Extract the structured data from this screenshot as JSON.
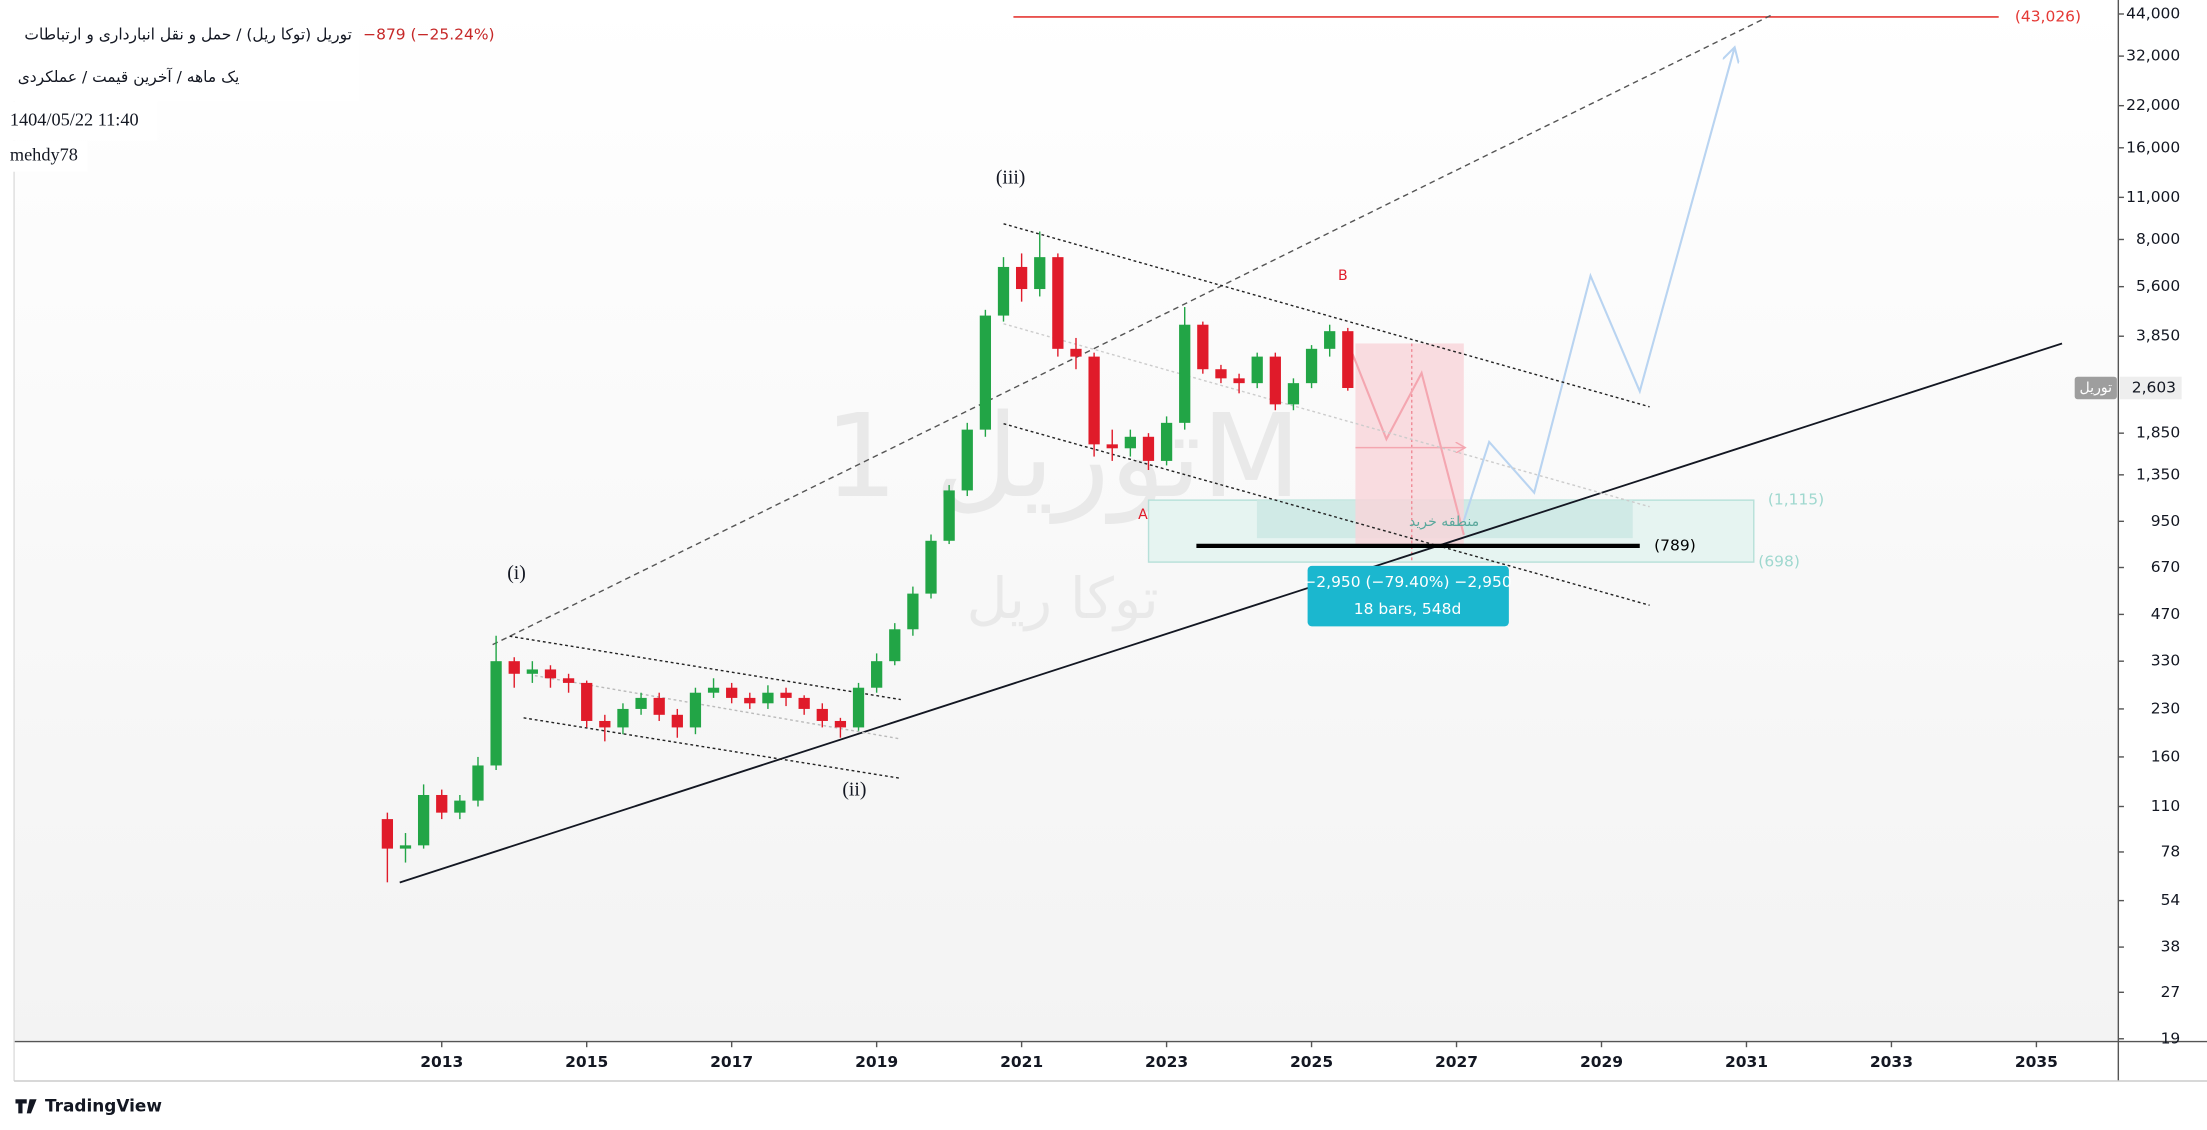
{
  "chart_data": {
    "type": "candlestick",
    "title": "توریل (توکا ریل) / حمل و نقل انبارداری و ارتباطات",
    "subtitle": "یک ماهه / آخرین قیمت / عملکردی",
    "change": "−879 (−25.24%)",
    "datetime": "1404/05/22 11:40",
    "author": "mehdy78",
    "watermark": "توریل 1M",
    "watermark_sub": "توکا ریل",
    "symbol": "توریل",
    "branding": "TradingView",
    "wave_labels": [
      "(i)",
      "(ii)",
      "(iii)",
      "A",
      "B"
    ],
    "zone_label": "منطقه خرید",
    "measure": [
      "−2,950 (−79.40%) −2,950",
      "18 bars, 548d"
    ],
    "log_scale": true,
    "up_color": "#22a546",
    "down_color": "#e01b2a",
    "x": [
      2012.25,
      2012.5,
      2012.75,
      2013.0,
      2013.25,
      2013.5,
      2013.75,
      2014.0,
      2014.25,
      2014.5,
      2014.75,
      2015.0,
      2015.25,
      2015.5,
      2015.75,
      2016.0,
      2016.25,
      2016.5,
      2016.75,
      2017.0,
      2017.25,
      2017.5,
      2017.75,
      2018.0,
      2018.25,
      2018.5,
      2018.75,
      2019.0,
      2019.25,
      2019.5,
      2019.75,
      2020.0,
      2020.25,
      2020.5,
      2020.75,
      2021.0,
      2021.25,
      2021.5,
      2021.75,
      2022.0,
      2022.25,
      2022.5,
      2022.75,
      2023.0,
      2023.25,
      2023.5,
      2023.75,
      2024.0,
      2024.25,
      2024.5,
      2024.75,
      2025.0,
      2025.25,
      2025.5
    ],
    "open": [
      100,
      80,
      82,
      120,
      105,
      115,
      150,
      330,
      300,
      310,
      290,
      280,
      210,
      200,
      230,
      250,
      220,
      200,
      260,
      270,
      250,
      240,
      260,
      250,
      230,
      210,
      200,
      270,
      330,
      420,
      550,
      820,
      1200,
      1900,
      4500,
      6500,
      5500,
      7000,
      3500,
      3300,
      1700,
      1650,
      1800,
      1500,
      2000,
      4200,
      3000,
      2800,
      2700,
      3300,
      2300,
      2700,
      3500,
      4000
    ],
    "high": [
      105,
      90,
      130,
      125,
      120,
      160,
      400,
      340,
      330,
      320,
      300,
      285,
      220,
      240,
      260,
      260,
      230,
      270,
      290,
      280,
      260,
      275,
      270,
      255,
      240,
      215,
      280,
      350,
      440,
      580,
      860,
      1250,
      2000,
      4700,
      7000,
      7200,
      8500,
      7200,
      3800,
      3400,
      1900,
      1900,
      1850,
      2100,
      4800,
      4300,
      3100,
      2900,
      3400,
      3400,
      2800,
      3600,
      4200,
      4100
    ],
    "low": [
      62,
      72,
      80,
      100,
      100,
      110,
      145,
      270,
      280,
      270,
      260,
      200,
      180,
      190,
      220,
      210,
      185,
      190,
      250,
      240,
      230,
      230,
      235,
      220,
      200,
      185,
      195,
      260,
      320,
      400,
      530,
      800,
      1150,
      1800,
      4300,
      5000,
      5200,
      3300,
      3000,
      1550,
      1500,
      1550,
      1400,
      1450,
      1900,
      2900,
      2700,
      2500,
      2600,
      2200,
      2200,
      2600,
      3300,
      2550
    ],
    "close": [
      80,
      82,
      120,
      105,
      115,
      150,
      330,
      300,
      310,
      290,
      280,
      210,
      200,
      230,
      250,
      220,
      200,
      260,
      270,
      250,
      240,
      260,
      250,
      230,
      210,
      200,
      270,
      330,
      420,
      550,
      820,
      1200,
      1900,
      4500,
      6500,
      5500,
      7000,
      3500,
      3300,
      1700,
      1650,
      1800,
      1500,
      2000,
      4200,
      3000,
      2800,
      2700,
      3300,
      2300,
      2700,
      3500,
      4000,
      2603
    ],
    "last_price": {
      "value": 2603,
      "label": "2,603"
    },
    "levels": [
      {
        "value": 43026,
        "label": "(43,026)",
        "color": "#e53935"
      },
      {
        "value": 1115,
        "label": "(1,115)",
        "color": "#9fd8cf"
      },
      {
        "value": 789,
        "label": "(789)",
        "color": "#000000"
      },
      {
        "value": 698,
        "label": "(698)",
        "color": "#9fd8cf"
      }
    ],
    "xlim": [
      2007.1,
      2036.13
    ],
    "xticks": [
      2013,
      2015,
      2017,
      2019,
      2021,
      2023,
      2025,
      2027,
      2029,
      2031,
      2033,
      2035
    ],
    "ylim": [
      18.6,
      48900
    ],
    "yticks": [
      {
        "value": 44000,
        "label": "44,000"
      },
      {
        "value": 32000,
        "label": "32,000"
      },
      {
        "value": 22000,
        "label": "22,000"
      },
      {
        "value": 16000,
        "label": "16,000"
      },
      {
        "value": 11000,
        "label": "11,000"
      },
      {
        "value": 8000,
        "label": "8,000"
      },
      {
        "value": 5600,
        "label": "5,600"
      },
      {
        "value": 3850,
        "label": "3,850"
      },
      {
        "value": 1850,
        "label": "1,850"
      },
      {
        "value": 1350,
        "label": "1,350"
      },
      950,
      670,
      470,
      330,
      230,
      160,
      110,
      78,
      54,
      38,
      27,
      19
    ]
  }
}
